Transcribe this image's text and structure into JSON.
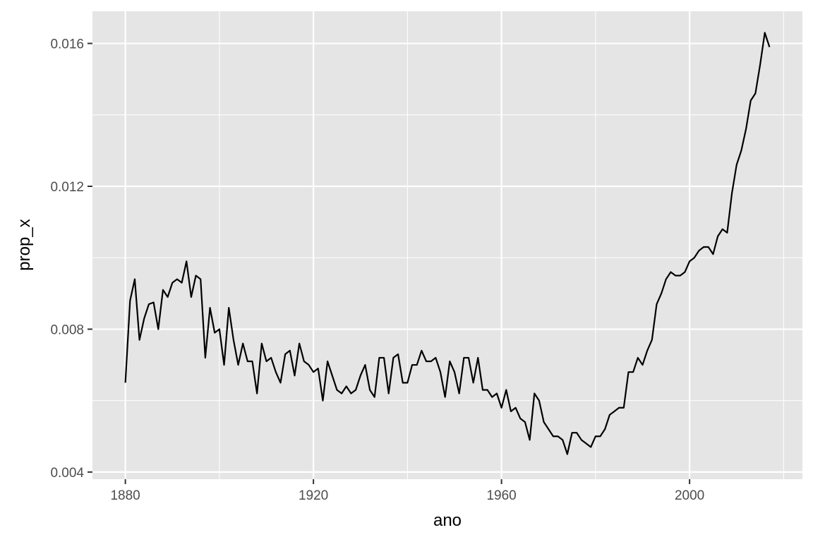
{
  "chart_data": {
    "type": "line",
    "title": "",
    "xlabel": "ano",
    "ylabel": "prop_x",
    "xlim": [
      1873,
      2024
    ],
    "ylim": [
      0.0038,
      0.0169
    ],
    "x_ticks": [
      1880,
      1920,
      1960,
      2000
    ],
    "x_tick_labels": [
      "1880",
      "1920",
      "1960",
      "2000"
    ],
    "y_ticks": [
      0.004,
      0.008,
      0.012,
      0.016
    ],
    "y_tick_labels": [
      "0.004",
      "0.008",
      "0.012",
      "0.016"
    ],
    "grid": true,
    "legend": "none",
    "colors": {
      "panel": "#e5e5e5",
      "grid": "#ffffff",
      "line": "#000000",
      "tick_text": "#4d4d4d",
      "axis_title": "#000000"
    },
    "series": [
      {
        "x": [
          1880,
          1881,
          1882,
          1883,
          1884,
          1885,
          1886,
          1887,
          1888,
          1889,
          1890,
          1891,
          1892,
          1893,
          1894,
          1895,
          1896,
          1897,
          1898,
          1899,
          1900,
          1901,
          1902,
          1903,
          1904,
          1905,
          1906,
          1907,
          1908,
          1909,
          1910,
          1911,
          1912,
          1913,
          1914,
          1915,
          1916,
          1917,
          1918,
          1919,
          1920,
          1921,
          1922,
          1923,
          1924,
          1925,
          1926,
          1927,
          1928,
          1929,
          1930,
          1931,
          1932,
          1933,
          1934,
          1935,
          1936,
          1937,
          1938,
          1939,
          1940,
          1941,
          1942,
          1943,
          1944,
          1945,
          1946,
          1947,
          1948,
          1949,
          1950,
          1951,
          1952,
          1953,
          1954,
          1955,
          1956,
          1957,
          1958,
          1959,
          1960,
          1961,
          1962,
          1963,
          1964,
          1965,
          1966,
          1967,
          1968,
          1969,
          1970,
          1971,
          1972,
          1973,
          1974,
          1975,
          1976,
          1977,
          1978,
          1979,
          1980,
          1981,
          1982,
          1983,
          1984,
          1985,
          1986,
          1987,
          1988,
          1989,
          1990,
          1991,
          1992,
          1993,
          1994,
          1995,
          1996,
          1997,
          1998,
          1999,
          2000,
          2001,
          2002,
          2003,
          2004,
          2005,
          2006,
          2007,
          2008,
          2009,
          2010,
          2011,
          2012,
          2013,
          2014,
          2015,
          2016,
          2017
        ],
        "y": [
          0.0065,
          0.0088,
          0.0094,
          0.0077,
          0.0083,
          0.0087,
          0.00875,
          0.008,
          0.0091,
          0.0089,
          0.0093,
          0.0094,
          0.0093,
          0.0099,
          0.0089,
          0.0095,
          0.0094,
          0.0072,
          0.0086,
          0.0079,
          0.008,
          0.007,
          0.0086,
          0.0077,
          0.007,
          0.0076,
          0.0071,
          0.0071,
          0.0062,
          0.0076,
          0.0071,
          0.0072,
          0.0068,
          0.0065,
          0.0073,
          0.0074,
          0.0067,
          0.0076,
          0.0071,
          0.007,
          0.0068,
          0.0069,
          0.006,
          0.0071,
          0.0067,
          0.0063,
          0.0062,
          0.0064,
          0.0062,
          0.0063,
          0.0067,
          0.007,
          0.0063,
          0.0061,
          0.0072,
          0.0072,
          0.0062,
          0.0072,
          0.0073,
          0.0065,
          0.0065,
          0.007,
          0.007,
          0.0074,
          0.0071,
          0.0071,
          0.0072,
          0.0068,
          0.0061,
          0.0071,
          0.0068,
          0.0062,
          0.0072,
          0.0072,
          0.0065,
          0.0072,
          0.0063,
          0.0063,
          0.0061,
          0.0062,
          0.0058,
          0.0063,
          0.0057,
          0.0058,
          0.0055,
          0.0054,
          0.0049,
          0.0062,
          0.006,
          0.0054,
          0.0052,
          0.005,
          0.005,
          0.0049,
          0.0045,
          0.0051,
          0.0051,
          0.0049,
          0.0048,
          0.0047,
          0.005,
          0.005,
          0.0052,
          0.0056,
          0.0057,
          0.0058,
          0.0058,
          0.0068,
          0.0068,
          0.0072,
          0.007,
          0.0074,
          0.0077,
          0.0087,
          0.009,
          0.0094,
          0.0096,
          0.0095,
          0.0095,
          0.0096,
          0.0099,
          0.01,
          0.0102,
          0.0103,
          0.0103,
          0.0101,
          0.0106,
          0.0108,
          0.0107,
          0.0118,
          0.0126,
          0.013,
          0.0136,
          0.0144,
          0.0146,
          0.0154,
          0.0163,
          0.0159
        ]
      }
    ]
  }
}
